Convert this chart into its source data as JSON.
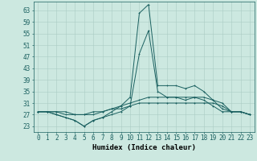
{
  "xlabel": "Humidex (Indice chaleur)",
  "ylabel": "",
  "background_color": "#cce8e0",
  "grid_color": "#aaccc4",
  "line_color": "#1a6060",
  "x_values": [
    0,
    1,
    2,
    3,
    4,
    5,
    6,
    7,
    8,
    9,
    10,
    11,
    12,
    13,
    14,
    15,
    16,
    17,
    18,
    19,
    20,
    21,
    22,
    23
  ],
  "series": [
    [
      28,
      28,
      27,
      26,
      25,
      23,
      25,
      26,
      28,
      30,
      33,
      62,
      65,
      37,
      37,
      37,
      36,
      37,
      35,
      32,
      29,
      28,
      28,
      27
    ],
    [
      28,
      28,
      27,
      26,
      25,
      23,
      25,
      26,
      27,
      28,
      30,
      48,
      56,
      35,
      33,
      33,
      32,
      33,
      32,
      30,
      28,
      28,
      28,
      27
    ],
    [
      28,
      28,
      28,
      27,
      27,
      27,
      27,
      28,
      29,
      30,
      31,
      32,
      33,
      33,
      33,
      33,
      33,
      33,
      33,
      32,
      31,
      28,
      28,
      27
    ],
    [
      28,
      28,
      28,
      28,
      27,
      27,
      28,
      28,
      29,
      29,
      30,
      31,
      31,
      31,
      31,
      31,
      31,
      31,
      31,
      31,
      30,
      28,
      28,
      27
    ]
  ],
  "ylim": [
    21,
    66
  ],
  "xlim": [
    -0.5,
    23.5
  ],
  "yticks": [
    23,
    27,
    31,
    35,
    39,
    43,
    47,
    51,
    55,
    59,
    63
  ],
  "xticks": [
    0,
    1,
    2,
    3,
    4,
    5,
    6,
    7,
    8,
    9,
    10,
    11,
    12,
    13,
    14,
    15,
    16,
    17,
    18,
    19,
    20,
    21,
    22,
    23
  ],
  "xlabel_fontsize": 6.5,
  "tick_fontsize": 5.5
}
